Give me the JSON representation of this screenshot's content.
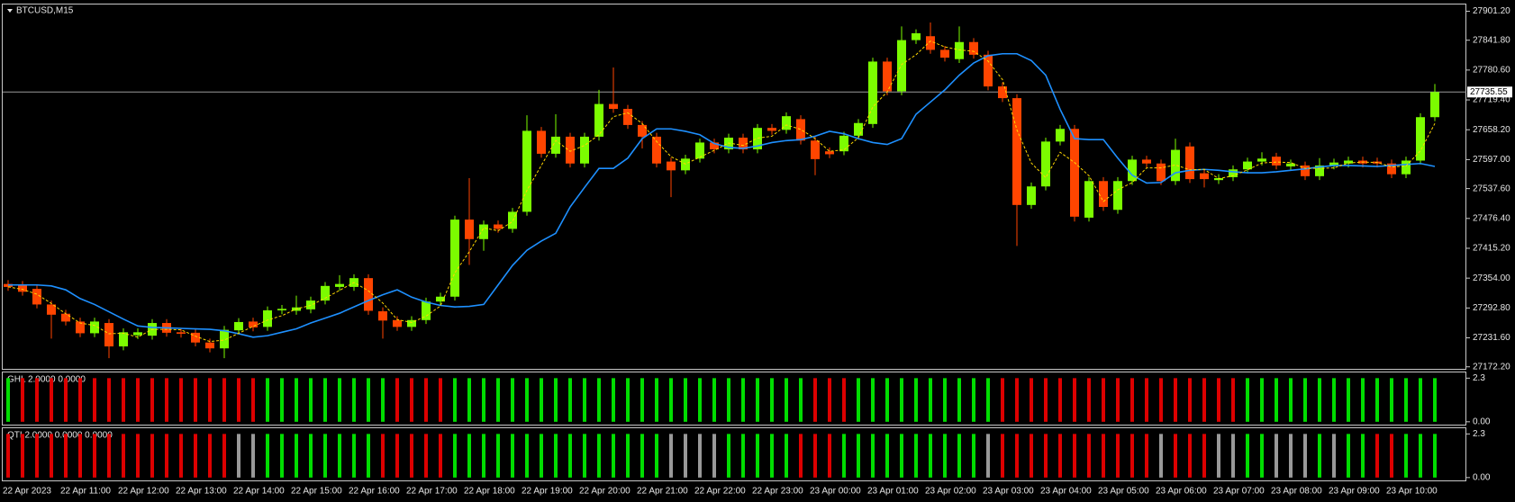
{
  "chart_data": [
    {
      "type": "candlestick",
      "title": "BTCUSD,M15",
      "categories": [
        "22 Apr 2023",
        null,
        null,
        null,
        "22 Apr 11:00",
        null,
        null,
        null,
        "22 Apr 12:00",
        null,
        null,
        null,
        "22 Apr 13:00",
        null,
        null,
        null,
        "22 Apr 14:00",
        null,
        null,
        null,
        "22 Apr 15:00",
        null,
        null,
        null,
        "22 Apr 16:00",
        null,
        null,
        null,
        "22 Apr 17:00",
        null,
        null,
        null,
        "22 Apr 18:00",
        null,
        null,
        null,
        "22 Apr 19:00",
        null,
        null,
        null,
        "22 Apr 20:00",
        null,
        null,
        null,
        "22 Apr 21:00",
        null,
        null,
        null,
        "22 Apr 22:00",
        null,
        null,
        null,
        "22 Apr 23:00",
        null,
        null,
        null,
        "23 Apr 00:00",
        null,
        null,
        null,
        "23 Apr 01:00",
        null,
        null,
        null,
        "23 Apr 02:00",
        null,
        null,
        null,
        "23 Apr 03:00",
        null,
        null,
        null,
        "23 Apr 04:00",
        null,
        null,
        null,
        "23 Apr 05:00",
        null,
        null,
        null,
        "23 Apr 06:00",
        null,
        null,
        null,
        "23 Apr 07:00",
        null,
        null,
        null,
        "23 Apr 08:00",
        null,
        null,
        null,
        "23 Apr 09:00",
        null,
        null,
        null,
        "23 Apr 10:00",
        null,
        null,
        null
      ],
      "open": [
        27342,
        27340,
        27332,
        27300,
        27281,
        27265,
        27241,
        27262,
        27214,
        27237,
        27236,
        27262,
        27243,
        27242,
        27222,
        27210,
        27247,
        27265,
        27254,
        27288,
        27287,
        27290,
        27308,
        27336,
        27336,
        27354,
        27286,
        27268,
        27254,
        27268,
        27306,
        27316,
        27474,
        27434,
        27464,
        27455,
        27490,
        27656,
        27609,
        27644,
        27589,
        27644,
        27711,
        27701,
        27668,
        27644,
        27593,
        27575,
        27599,
        27632,
        27618,
        27642,
        27618,
        27662,
        27658,
        27680,
        27636,
        27614,
        27614,
        27646,
        27670,
        27798,
        27737,
        27842,
        27850,
        27822,
        27803,
        27838,
        27812,
        27747,
        27723,
        27504,
        27542,
        27634,
        27660,
        27478,
        27553,
        27494,
        27553,
        27597,
        27589,
        27553,
        27624,
        27569,
        27555,
        27561,
        27577,
        27593,
        27603,
        27583,
        27585,
        27563,
        27585,
        27589,
        27595,
        27593,
        27589,
        27567,
        27595,
        27684
      ],
      "high": [
        27350,
        27348,
        27340,
        27308,
        27289,
        27273,
        27273,
        27270,
        27251,
        27251,
        27270,
        27270,
        27251,
        27250,
        27230,
        27256,
        27272,
        27273,
        27296,
        27299,
        27318,
        27316,
        27346,
        27360,
        27362,
        27362,
        27294,
        27276,
        27276,
        27314,
        27324,
        27482,
        27559,
        27472,
        27472,
        27498,
        27688,
        27664,
        27690,
        27652,
        27652,
        27740,
        27786,
        27709,
        27676,
        27652,
        27601,
        27607,
        27640,
        27640,
        27650,
        27650,
        27670,
        27670,
        27694,
        27688,
        27644,
        27622,
        27654,
        27680,
        27806,
        27806,
        27870,
        27864,
        27878,
        27830,
        27870,
        27846,
        27820,
        27755,
        27731,
        27550,
        27642,
        27668,
        27668,
        27561,
        27561,
        27561,
        27605,
        27605,
        27597,
        27640,
        27632,
        27577,
        27567,
        27585,
        27601,
        27612,
        27611,
        27597,
        27593,
        27600,
        27599,
        27603,
        27603,
        27601,
        27597,
        27603,
        27692,
        27752
      ],
      "low": [
        27328,
        27318,
        27292,
        27230,
        27257,
        27233,
        27233,
        27190,
        27206,
        27229,
        27228,
        27234,
        27232,
        27214,
        27202,
        27190,
        27239,
        27245,
        27246,
        27280,
        27279,
        27282,
        27300,
        27328,
        27328,
        27279,
        27230,
        27246,
        27246,
        27260,
        27298,
        27308,
        27381,
        27410,
        27447,
        27447,
        27482,
        27601,
        27601,
        27581,
        27581,
        27636,
        27693,
        27660,
        27620,
        27581,
        27520,
        27567,
        27591,
        27610,
        27610,
        27610,
        27610,
        27648,
        27650,
        27628,
        27565,
        27600,
        27606,
        27638,
        27662,
        27729,
        27729,
        27834,
        27814,
        27798,
        27795,
        27804,
        27739,
        27715,
        27420,
        27496,
        27534,
        27626,
        27470,
        27470,
        27492,
        27486,
        27545,
        27581,
        27545,
        27545,
        27549,
        27540,
        27547,
        27553,
        27569,
        27585,
        27577,
        27575,
        27555,
        27555,
        27577,
        27581,
        27581,
        27581,
        27559,
        27559,
        27587,
        27676
      ],
      "close": [
        27336,
        27326,
        27300,
        27279,
        27265,
        27241,
        27265,
        27214,
        27243,
        27243,
        27262,
        27242,
        27240,
        27222,
        27210,
        27248,
        27264,
        27253,
        27288,
        27291,
        27294,
        27308,
        27338,
        27342,
        27354,
        27287,
        27267,
        27254,
        27268,
        27306,
        27316,
        27474,
        27434,
        27464,
        27455,
        27490,
        27656,
        27609,
        27644,
        27589,
        27644,
        27711,
        27701,
        27668,
        27644,
        27589,
        27575,
        27599,
        27632,
        27618,
        27642,
        27618,
        27662,
        27656,
        27686,
        27636,
        27598,
        27608,
        27646,
        27672,
        27798,
        27737,
        27842,
        27856,
        27822,
        27806,
        27838,
        27812,
        27747,
        27723,
        27504,
        27542,
        27634,
        27660,
        27480,
        27553,
        27500,
        27553,
        27597,
        27589,
        27553,
        27617,
        27557,
        27557,
        27559,
        27577,
        27593,
        27599,
        27585,
        27589,
        27563,
        27585,
        27591,
        27595,
        27589,
        27589,
        27567,
        27595,
        27684,
        27735.55
      ],
      "up_color": "#7cfc00",
      "down_color": "#ff4500",
      "overlays": [
        {
          "color": "#1e90ff",
          "dashed": false,
          "values": [
            27340,
            27340,
            27340,
            27338,
            27330,
            27312,
            27300,
            27285,
            27270,
            27256,
            27253,
            27252,
            27251,
            27250,
            27249,
            27246,
            27240,
            27233,
            27236,
            27243,
            27250,
            27262,
            27272,
            27282,
            27295,
            27308,
            27320,
            27330,
            27315,
            27305,
            27298,
            27295,
            27296,
            27300,
            27340,
            27380,
            27411,
            27430,
            27446,
            27500,
            27540,
            27579,
            27579,
            27600,
            27640,
            27660,
            27660,
            27655,
            27648,
            27630,
            27622,
            27620,
            27625,
            27632,
            27636,
            27638,
            27645,
            27655,
            27650,
            27640,
            27632,
            27628,
            27640,
            27690,
            27715,
            27740,
            27770,
            27795,
            27810,
            27814,
            27814,
            27800,
            27770,
            27700,
            27640,
            27638,
            27638,
            27600,
            27565,
            27549,
            27550,
            27570,
            27575,
            27577,
            27575,
            27572,
            27570,
            27570,
            27572,
            27575,
            27578,
            27582,
            27585,
            27585,
            27584,
            27583,
            27585,
            27587,
            27589,
            27583
          ]
        },
        {
          "color": "#ffd700",
          "dashed": true,
          "values": [
            27336,
            27331,
            27321,
            27302,
            27281,
            27262,
            27257,
            27240,
            27241,
            27233,
            27249,
            27249,
            27248,
            27235,
            27224,
            27227,
            27241,
            27255,
            27268,
            27277,
            27291,
            27298,
            27313,
            27329,
            27345,
            27328,
            27303,
            27269,
            27263,
            27276,
            27297,
            27365,
            27408,
            27457,
            27451,
            27470,
            27534,
            27585,
            27636,
            27614,
            27626,
            27648,
            27685,
            27693,
            27671,
            27634,
            27603,
            27588,
            27602,
            27616,
            27631,
            27626,
            27641,
            27645,
            27668,
            27659,
            27640,
            27614,
            27617,
            27642,
            27705,
            27736,
            27792,
            27812,
            27840,
            27828,
            27822,
            27819,
            27799,
            27761,
            27658,
            27590,
            27560,
            27612,
            27591,
            27564,
            27511,
            27535,
            27550,
            27580,
            27580,
            27586,
            27576,
            27577,
            27558,
            27564,
            27576,
            27590,
            27592,
            27591,
            27579,
            27579,
            27580,
            27590,
            27592,
            27591,
            27582,
            27584,
            27615,
            27671
          ]
        }
      ],
      "last_price": 27735.55,
      "ylim": [
        27168,
        27915
      ],
      "yticks": [
        {
          "value": 27901.2,
          "label": "27901.20"
        },
        {
          "value": 27841.8,
          "label": "27841.80"
        },
        {
          "value": 27780.6,
          "label": "27780.60"
        },
        {
          "value": 27719.4,
          "label": "27719.40"
        },
        {
          "value": 27658.2,
          "label": "27658.20"
        },
        {
          "value": 27597,
          "label": "27597.00"
        },
        {
          "value": 27537.6,
          "label": "27537.60"
        },
        {
          "value": 27476.4,
          "label": "27476.40"
        },
        {
          "value": 27415.2,
          "label": "27415.20"
        },
        {
          "value": 27354,
          "label": "27354.00"
        },
        {
          "value": 27292.8,
          "label": "27292.80"
        },
        {
          "value": 27231.6,
          "label": "27231.60"
        },
        {
          "value": 27172.2,
          "label": "27172.20"
        }
      ]
    },
    {
      "type": "bar",
      "title": "GHL 2.0000 0.0000",
      "values": [
        2.3,
        2.3,
        2.3,
        2.3,
        2.3,
        2.3,
        2.3,
        2.3,
        2.3,
        2.3,
        2.3,
        2.3,
        2.3,
        2.3,
        2.3,
        2.3,
        2.3,
        2.3,
        2.3,
        2.3,
        2.3,
        2.3,
        2.3,
        2.3,
        2.3,
        2.3,
        2.3,
        2.3,
        2.3,
        2.3,
        2.3,
        2.3,
        2.3,
        2.3,
        2.3,
        2.3,
        2.3,
        2.3,
        2.3,
        2.3,
        2.3,
        2.3,
        2.3,
        2.3,
        2.3,
        2.3,
        2.3,
        2.3,
        2.3,
        2.3,
        2.3,
        2.3,
        2.3,
        2.3,
        2.3,
        2.3,
        2.3,
        2.3,
        2.3,
        2.3,
        2.3,
        2.3,
        2.3,
        2.3,
        2.3,
        2.3,
        2.3,
        2.3,
        2.3,
        2.3,
        2.3,
        2.3,
        2.3,
        2.3,
        2.3,
        2.3,
        2.3,
        2.3,
        2.3,
        2.3,
        2.3,
        2.3,
        2.3,
        2.3,
        2.3,
        2.3,
        2.3,
        2.3,
        2.3,
        2.3,
        2.3,
        2.3,
        2.3,
        2.3,
        2.3,
        2.3,
        2.3,
        2.3,
        2.3,
        2.3
      ],
      "colors": [
        "#0d0",
        "#d00",
        "#d00",
        "#d00",
        "#d00",
        "#d00",
        "#d00",
        "#d00",
        "#d00",
        "#d00",
        "#d00",
        "#d00",
        "#d00",
        "#d00",
        "#d00",
        "#d00",
        "#d00",
        "#d00",
        "#0d0",
        "#0d0",
        "#0d0",
        "#0d0",
        "#0d0",
        "#0d0",
        "#0d0",
        "#0d0",
        "#0d0",
        "#d00",
        "#d00",
        "#d00",
        "#d00",
        "#0d0",
        "#0d0",
        "#0d0",
        "#0d0",
        "#0d0",
        "#0d0",
        "#0d0",
        "#0d0",
        "#0d0",
        "#0d0",
        "#0d0",
        "#0d0",
        "#0d0",
        "#0d0",
        "#0d0",
        "#0d0",
        "#0d0",
        "#0d0",
        "#0d0",
        "#0d0",
        "#0d0",
        "#0d0",
        "#0d0",
        "#0d0",
        "#0d0",
        "#d00",
        "#d00",
        "#d00",
        "#0d0",
        "#0d0",
        "#0d0",
        "#0d0",
        "#0d0",
        "#0d0",
        "#0d0",
        "#0d0",
        "#0d0",
        "#0d0",
        "#d00",
        "#d00",
        "#d00",
        "#d00",
        "#d00",
        "#d00",
        "#d00",
        "#d00",
        "#d00",
        "#d00",
        "#d00",
        "#d00",
        "#d00",
        "#d00",
        "#d00",
        "#d00",
        "#d00",
        "#0d0",
        "#0d0",
        "#0d0",
        "#0d0",
        "#0d0",
        "#0d0",
        "#0d0",
        "#0d0",
        "#0d0",
        "#0d0",
        "#0d0",
        "#0d0",
        "#0d0",
        "#0d0"
      ],
      "ylim": [
        -0.15,
        2.6
      ],
      "yticks": [
        2.3,
        {
          "value": 0,
          "label": "0.00"
        }
      ]
    },
    {
      "type": "bar",
      "title": "QTI 2.0000 0.0000 0.0000",
      "values": [
        2.3,
        2.3,
        2.3,
        2.3,
        2.3,
        2.3,
        2.3,
        2.3,
        2.3,
        2.3,
        2.3,
        2.3,
        2.3,
        2.3,
        2.3,
        2.3,
        2.3,
        2.3,
        2.3,
        2.3,
        2.3,
        2.3,
        2.3,
        2.3,
        2.3,
        2.3,
        2.3,
        2.3,
        2.3,
        2.3,
        2.3,
        2.3,
        2.3,
        2.3,
        2.3,
        2.3,
        2.3,
        2.3,
        2.3,
        2.3,
        2.3,
        2.3,
        2.3,
        2.3,
        2.3,
        2.3,
        2.3,
        2.3,
        2.3,
        2.3,
        2.3,
        2.3,
        2.3,
        2.3,
        2.3,
        2.3,
        2.3,
        2.3,
        2.3,
        2.3,
        2.3,
        2.3,
        2.3,
        2.3,
        2.3,
        2.3,
        2.3,
        2.3,
        2.3,
        2.3,
        2.3,
        2.3,
        2.3,
        2.3,
        2.3,
        2.3,
        2.3,
        2.3,
        2.3,
        2.3,
        2.3,
        2.3,
        2.3,
        2.3,
        2.3,
        2.3,
        2.3,
        2.3,
        2.3,
        2.3,
        2.3,
        2.3,
        2.3,
        2.3,
        2.3,
        2.3,
        2.3,
        2.3,
        2.3,
        2.3
      ],
      "colors": [
        "#d00",
        "#d00",
        "#d00",
        "#d00",
        "#d00",
        "#d00",
        "#d00",
        "#d00",
        "#d00",
        "#d00",
        "#d00",
        "#d00",
        "#d00",
        "#d00",
        "#d00",
        "#d00",
        "#999",
        "#999",
        "#0d0",
        "#0d0",
        "#0d0",
        "#0d0",
        "#0d0",
        "#0d0",
        "#0d0",
        "#0d0",
        "#d00",
        "#d00",
        "#d00",
        "#d00",
        "#d00",
        "#0d0",
        "#0d0",
        "#0d0",
        "#0d0",
        "#0d0",
        "#0d0",
        "#0d0",
        "#0d0",
        "#0d0",
        "#0d0",
        "#0d0",
        "#0d0",
        "#0d0",
        "#0d0",
        "#0d0",
        "#999",
        "#999",
        "#999",
        "#999",
        "#0d0",
        "#0d0",
        "#0d0",
        "#0d0",
        "#0d0",
        "#d00",
        "#d00",
        "#d00",
        "#0d0",
        "#0d0",
        "#0d0",
        "#0d0",
        "#0d0",
        "#0d0",
        "#0d0",
        "#0d0",
        "#0d0",
        "#0d0",
        "#999",
        "#d00",
        "#d00",
        "#d00",
        "#d00",
        "#d00",
        "#d00",
        "#d00",
        "#d00",
        "#d00",
        "#d00",
        "#d00",
        "#999",
        "#d00",
        "#d00",
        "#d00",
        "#999",
        "#999",
        "#0d0",
        "#0d0",
        "#999",
        "#999",
        "#999",
        "#0d0",
        "#999",
        "#0d0",
        "#0d0",
        "#d00",
        "#d00",
        "#0d0",
        "#0d0",
        "#0d0"
      ],
      "ylim": [
        -0.15,
        2.6
      ],
      "yticks": [
        2.3,
        {
          "value": 0,
          "label": "0.00"
        }
      ]
    }
  ]
}
